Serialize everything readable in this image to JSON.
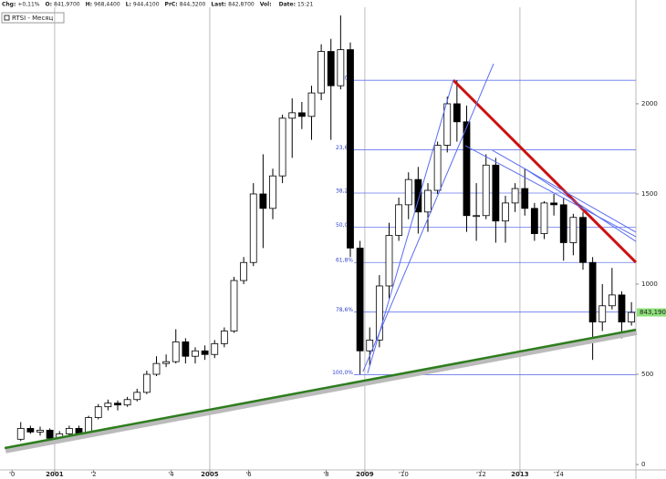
{
  "chart_data": {
    "type": "candlestick",
    "header": [
      {
        "label": "Chg:",
        "value": "+0,11%"
      },
      {
        "label": "O:",
        "value": "841,9700"
      },
      {
        "label": "H:",
        "value": "968,4400"
      },
      {
        "label": "L:",
        "value": "944,4100"
      },
      {
        "label": "PrC:",
        "value": "844,3200"
      },
      {
        "label": "Last:",
        "value": "842,8700"
      },
      {
        "label": "Vol:",
        "value": ""
      },
      {
        "label": "Date:",
        "value": "15:21"
      }
    ],
    "legend": "RTSI - Месяц",
    "x": [
      2000.125,
      2000.375,
      2000.625,
      2000.875,
      2001.125,
      2001.375,
      2001.625,
      2001.875,
      2002.125,
      2002.375,
      2002.625,
      2002.875,
      2003.125,
      2003.375,
      2003.625,
      2003.875,
      2004.125,
      2004.375,
      2004.625,
      2004.875,
      2005.125,
      2005.375,
      2005.625,
      2005.875,
      2006.125,
      2006.375,
      2006.625,
      2006.875,
      2007.125,
      2007.375,
      2007.625,
      2007.875,
      2008.125,
      2008.375,
      2008.625,
      2008.875,
      2009.125,
      2009.375,
      2009.625,
      2009.875,
      2010.125,
      2010.375,
      2010.625,
      2010.875,
      2011.125,
      2011.375,
      2011.625,
      2011.875,
      2012.125,
      2012.375,
      2012.625,
      2012.875,
      2013.125,
      2013.375,
      2013.625,
      2013.875,
      2014.125,
      2014.375,
      2014.625,
      2014.875,
      2015.125,
      2015.375,
      2015.625,
      2015.875
    ],
    "open": [
      140,
      200,
      180,
      190,
      145,
      170,
      200,
      170,
      260,
      320,
      340,
      330,
      360,
      400,
      500,
      560,
      570,
      680,
      600,
      630,
      610,
      670,
      740,
      1020,
      1120,
      1500,
      1420,
      1600,
      1920,
      1950,
      1930,
      2060,
      2290,
      2100,
      2300,
      1200,
      630,
      690,
      990,
      1270,
      1440,
      1580,
      1400,
      1520,
      1770,
      2000,
      1900,
      1380,
      1380,
      1660,
      1350,
      1450,
      1530,
      1420,
      1280,
      1450,
      1440,
      1230,
      1370,
      1120,
      790,
      880,
      940,
      790
    ],
    "high": [
      235,
      215,
      210,
      200,
      185,
      215,
      215,
      270,
      335,
      360,
      355,
      375,
      420,
      520,
      600,
      610,
      750,
      700,
      650,
      660,
      690,
      760,
      1040,
      1150,
      1560,
      1720,
      1640,
      1940,
      2030,
      2010,
      2100,
      2330,
      2360,
      2490,
      2340,
      1240,
      760,
      1050,
      1340,
      1480,
      1620,
      1650,
      1560,
      1790,
      2040,
      2130,
      1990,
      1560,
      1720,
      1700,
      1490,
      1560,
      1640,
      1450,
      1460,
      1500,
      1480,
      1390,
      1400,
      1150,
      1000,
      1090,
      960,
      900
    ],
    "low": [
      130,
      170,
      160,
      140,
      135,
      160,
      150,
      165,
      250,
      300,
      300,
      320,
      350,
      390,
      490,
      540,
      560,
      560,
      560,
      580,
      590,
      650,
      730,
      1000,
      1100,
      1200,
      1360,
      1560,
      1700,
      1860,
      1800,
      2020,
      1800,
      2080,
      1150,
      500,
      550,
      650,
      920,
      1240,
      1360,
      1280,
      1290,
      1500,
      1730,
      1790,
      1290,
      1240,
      1360,
      1230,
      1230,
      1400,
      1380,
      1240,
      1250,
      1380,
      1130,
      1160,
      1080,
      580,
      740,
      860,
      700,
      770
    ],
    "close": [
      200,
      180,
      190,
      145,
      170,
      200,
      170,
      260,
      320,
      340,
      330,
      360,
      400,
      500,
      560,
      570,
      680,
      600,
      630,
      610,
      670,
      740,
      1020,
      1120,
      1500,
      1420,
      1600,
      1920,
      1950,
      1930,
      2060,
      2290,
      2100,
      2300,
      1200,
      630,
      690,
      990,
      1270,
      1440,
      1580,
      1400,
      1520,
      1770,
      2000,
      1900,
      1380,
      1380,
      1660,
      1350,
      1450,
      1530,
      1420,
      1280,
      1450,
      1440,
      1230,
      1370,
      1120,
      790,
      880,
      940,
      790,
      843
    ],
    "xlim": [
      1999.59,
      2015.99
    ],
    "ylim": [
      -30,
      2535
    ],
    "yticks": [
      0,
      500,
      1000,
      1500,
      2000
    ],
    "xticks": [
      {
        "value": 1999.9,
        "label": "'0"
      },
      {
        "value": 2001,
        "label": "2001",
        "grid": true
      },
      {
        "value": 2002,
        "label": "'2"
      },
      {
        "value": 2004,
        "label": "'4"
      },
      {
        "value": 2005,
        "label": "2005",
        "grid": true
      },
      {
        "value": 2006,
        "label": "'6"
      },
      {
        "value": 2008,
        "label": "'8"
      },
      {
        "value": 2009,
        "label": "2009",
        "grid": true
      },
      {
        "value": 2010,
        "label": "'10"
      },
      {
        "value": 2012,
        "label": "'12"
      },
      {
        "value": 2013,
        "label": "2013",
        "grid": true
      },
      {
        "value": 2014,
        "label": "'14"
      }
    ],
    "fib": [
      {
        "label": "0,0%",
        "value": 2130
      },
      {
        "label": "23,6%",
        "value": 1745
      },
      {
        "label": "38,2%",
        "value": 1505
      },
      {
        "label": "50,0%",
        "value": 1315
      },
      {
        "label": "61,8%",
        "value": 1120
      },
      {
        "label": "78,6%",
        "value": 845
      },
      {
        "label": "100,0%",
        "value": 498
      }
    ],
    "lines": [
      {
        "color": "#2e7d1e",
        "width": 2.5,
        "x": [
          1999.71,
          2015.99
        ],
        "y": [
          91,
          747
        ]
      },
      {
        "color": "#cc1111",
        "width": 3,
        "x": [
          2011.28,
          2015.99
        ],
        "y": [
          2131,
          1121
        ]
      },
      {
        "color": "#5a6cf0",
        "width": 1,
        "x": [
          2009.07,
          2011.28
        ],
        "y": [
          505,
          2131
        ]
      },
      {
        "color": "#5a6cf0",
        "width": 1,
        "x": [
          2008.95,
          2012.32
        ],
        "y": [
          515,
          2222
        ]
      },
      {
        "color": "#5a6cf0",
        "width": 1,
        "x": [
          2011.59,
          2015.99
        ],
        "y": [
          1768,
          1263
        ]
      },
      {
        "color": "#5a6cf0",
        "width": 1,
        "x": [
          2012.29,
          2015.99
        ],
        "y": [
          1742,
          1288
        ]
      },
      {
        "color": "#5a6cf0",
        "width": 1,
        "x": [
          2013.12,
          2015.99
        ],
        "y": [
          1641,
          1237
        ]
      }
    ],
    "last": {
      "value": 843.19,
      "label": "843,1900",
      "color": "#8ee07a"
    }
  }
}
